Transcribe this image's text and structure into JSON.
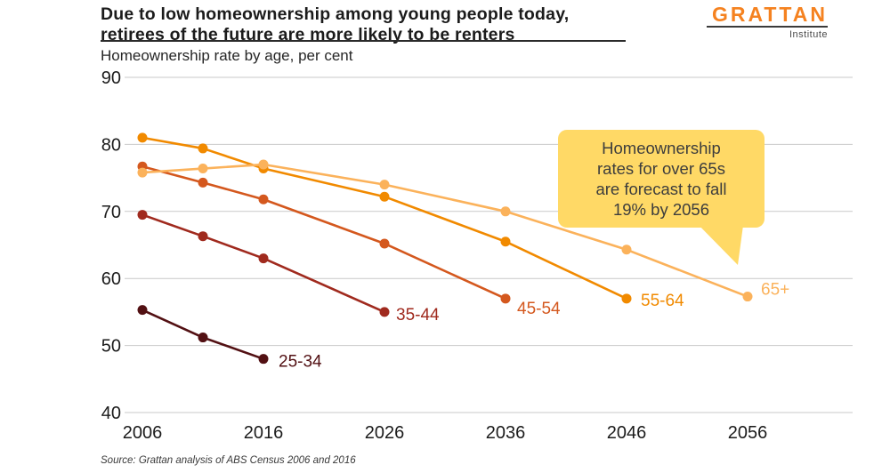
{
  "header": {
    "title_line1": "Due to low homeownership among young people today,",
    "title_line2": "retirees of the future are more likely to be renters",
    "subtitle": "Homeownership rate by age, per cent",
    "logo_text": "GRATTAN",
    "logo_subtext": "Institute",
    "logo_color": "#F58220"
  },
  "annotation": {
    "lines": [
      "Homeownership",
      "rates for over 65s",
      "are forecast to fall",
      "19% by 2056"
    ],
    "bg_color": "#FFD966"
  },
  "source": "Source: Grattan analysis of ABS Census 2006 and 2016",
  "chart_data": {
    "type": "line",
    "title": "Due to low homeownership among young people today, retirees of the future are more likely to be renters",
    "subtitle": "Homeownership rate by age, per cent",
    "xlim": [
      2006,
      2056
    ],
    "ylim": [
      40,
      90
    ],
    "xticks": [
      2006,
      2016,
      2026,
      2036,
      2046,
      2056
    ],
    "yticks": [
      90,
      80,
      70,
      60,
      50,
      40
    ],
    "grid": "horizontal",
    "legend_position": "end-of-line labels",
    "series": [
      {
        "name": "25-34",
        "color": "#521013",
        "points": [
          [
            2006,
            55.3
          ],
          [
            2011,
            51.2
          ],
          [
            2016,
            48.0
          ]
        ]
      },
      {
        "name": "35-44",
        "color": "#A02A1E",
        "points": [
          [
            2006,
            69.5
          ],
          [
            2011,
            66.3
          ],
          [
            2016,
            63.0
          ],
          [
            2026,
            55.0
          ]
        ]
      },
      {
        "name": "45-54",
        "color": "#D4581E",
        "points": [
          [
            2006,
            76.7
          ],
          [
            2011,
            74.3
          ],
          [
            2016,
            71.8
          ],
          [
            2026,
            65.2
          ],
          [
            2036,
            57.0
          ]
        ]
      },
      {
        "name": "55-64",
        "color": "#F18A00",
        "points": [
          [
            2006,
            81.0
          ],
          [
            2011,
            79.4
          ],
          [
            2016,
            76.4
          ],
          [
            2026,
            72.2
          ],
          [
            2036,
            65.5
          ],
          [
            2046,
            57.0
          ]
        ]
      },
      {
        "name": "65+",
        "color": "#FBB25B",
        "points": [
          [
            2006,
            75.8
          ],
          [
            2011,
            76.4
          ],
          [
            2016,
            77.0
          ],
          [
            2026,
            74.0
          ],
          [
            2036,
            70.0
          ],
          [
            2046,
            64.3
          ],
          [
            2056,
            57.3
          ]
        ]
      }
    ]
  }
}
